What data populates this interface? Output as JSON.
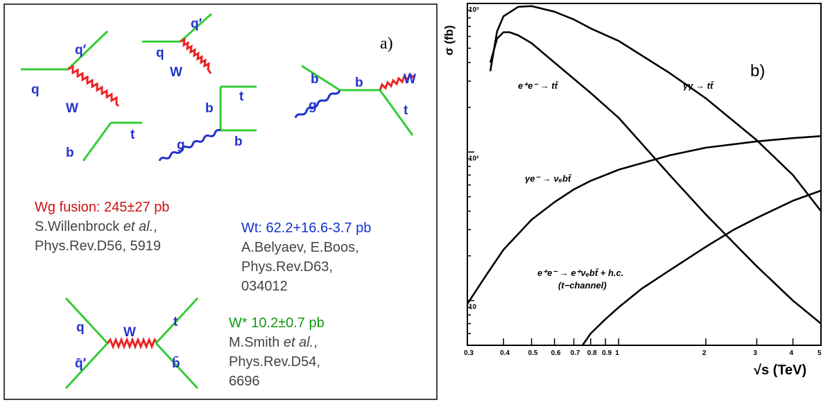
{
  "panel_a": {
    "label": "a)",
    "diagram_labels": {
      "d1": {
        "q_in": "q",
        "q_out": "q′",
        "w": "W",
        "b": "b",
        "t": "t"
      },
      "d2": {
        "q_in": "q",
        "q_out": "q′",
        "w": "W",
        "b_mid": "b",
        "t": "t",
        "g": "g",
        "b_out": "b"
      },
      "d3": {
        "b_in": "b",
        "g": "g",
        "b_mid": "b",
        "w": "W",
        "t": "t"
      },
      "d4": {
        "q": "q",
        "qbar": "q̄′",
        "w": "W",
        "t": "t",
        "bbar": "b̄"
      }
    },
    "process_1": {
      "title": "Wg fusion: 245±27 pb",
      "ref_author": "S.Willenbrock ",
      "ref_etal": "et al.",
      "ref_comma": ",",
      "ref_journal": "Phys.Rev.D56, 5919"
    },
    "process_2": {
      "title": "Wt: 62.2+16.6-3.7 pb",
      "ref_line1": "A.Belyaev, E.Boos,",
      "ref_line2": "Phys.Rev.D63,",
      "ref_line3": "034012"
    },
    "process_3": {
      "title": "W* 10.2±0.7 pb",
      "ref_author": "M.Smith ",
      "ref_etal": "et al.",
      "ref_comma": ",",
      "ref_line2": "Phys.Rev.D54,",
      "ref_line3": "6696"
    },
    "colors": {
      "fermion": "#33cc33",
      "w_boson": "#ee2222",
      "gluon": "#2233cc"
    }
  },
  "panel_b": {
    "label": "b)",
    "ylabel": "σ (fb)",
    "xlabel": "√s (TeV)",
    "y_ticks": [
      {
        "v": 1000,
        "t": "10³"
      },
      {
        "v": 100,
        "t": "10²"
      },
      {
        "v": 10,
        "t": "10"
      }
    ],
    "x_ticks": [
      {
        "v": 0.3,
        "t": "0.3"
      },
      {
        "v": 0.4,
        "t": "0.4"
      },
      {
        "v": 0.5,
        "t": "0.5"
      },
      {
        "v": 0.6,
        "t": "0.6"
      },
      {
        "v": 0.7,
        "t": "0.7"
      },
      {
        "v": 0.8,
        "t": "0.8"
      },
      {
        "v": 0.9,
        "t": "0.9"
      },
      {
        "v": 1,
        "t": "1"
      },
      {
        "v": 2,
        "t": "2"
      },
      {
        "v": 3,
        "t": "3"
      },
      {
        "v": 4,
        "t": "4"
      },
      {
        "v": 5,
        "t": "5"
      }
    ],
    "curve_labels": {
      "ee_tt": "e⁺e⁻ → tt̄",
      "gg_tt": "γγ → tt̄",
      "ge_nbt": "γe⁻ → νₑbt̄",
      "ee_enbt": "e⁺e⁻ → e⁺νₑbt̄ + h.c.",
      "ee_enbt_sub": "(t−channel)"
    }
  },
  "chart_data": {
    "type": "line",
    "xscale": "log",
    "yscale": "log",
    "xlim": [
      0.3,
      5
    ],
    "ylim": [
      5,
      1000
    ],
    "xlabel": "√s (TeV)",
    "ylabel": "σ (fb)",
    "series": [
      {
        "name": "γγ → tt̄",
        "x": [
          0.36,
          0.38,
          0.4,
          0.45,
          0.5,
          0.6,
          0.7,
          0.8,
          1.0,
          1.5,
          2.0,
          3.0,
          4.0,
          5.0
        ],
        "y": [
          350,
          650,
          820,
          950,
          960,
          880,
          780,
          680,
          560,
          340,
          230,
          120,
          70,
          40
        ]
      },
      {
        "name": "e⁺e⁻ → tt̄",
        "x": [
          0.36,
          0.38,
          0.4,
          0.42,
          0.45,
          0.5,
          0.6,
          0.8,
          1.0,
          1.5,
          2.0,
          3.0,
          4.0,
          5.0
        ],
        "y": [
          400,
          580,
          640,
          640,
          610,
          540,
          400,
          250,
          170,
          70,
          38,
          17,
          10,
          7
        ]
      },
      {
        "name": "γe⁻ → νₑbt̄",
        "x": [
          0.3,
          0.35,
          0.4,
          0.5,
          0.6,
          0.7,
          0.8,
          1.0,
          1.5,
          2.0,
          3.0,
          4.0,
          5.0
        ],
        "y": [
          9.5,
          15,
          22,
          35,
          46,
          56,
          64,
          76,
          95,
          107,
          118,
          124,
          128
        ]
      },
      {
        "name": "e⁺e⁻ → e⁺νₑbt̄ + h.c. (t−channel)",
        "x": [
          0.75,
          0.8,
          0.9,
          1.0,
          1.2,
          1.5,
          2.0,
          2.5,
          3.0,
          4.0,
          5.0
        ],
        "y": [
          5,
          6,
          7.5,
          9,
          12,
          16,
          23,
          30,
          36,
          47,
          55
        ]
      }
    ]
  }
}
